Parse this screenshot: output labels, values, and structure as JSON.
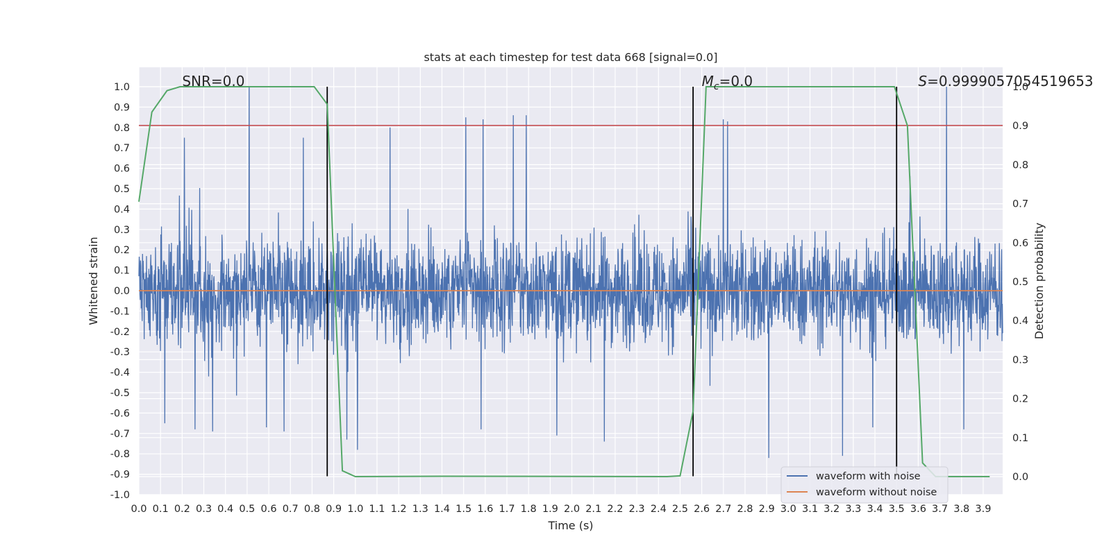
{
  "chart_data": {
    "type": "line",
    "title": "stats at each timestep for test data 668 [signal=0.0]",
    "xlabel": "Time (s)",
    "ylabel": "Whitened strain",
    "y2label": "Detection probability",
    "xlim": [
      0.0,
      3.99
    ],
    "ylim": [
      -1.0,
      1.0
    ],
    "y2lim": [
      -0.0466,
      1.0
    ],
    "x_ticks": [
      "0.0",
      "0.1",
      "0.2",
      "0.3",
      "0.4",
      "0.5",
      "0.6",
      "0.7",
      "0.8",
      "0.9",
      "1.0",
      "1.1",
      "1.2",
      "1.3",
      "1.4",
      "1.5",
      "1.6",
      "1.7",
      "1.8",
      "1.9",
      "2.0",
      "2.1",
      "2.2",
      "2.3",
      "2.4",
      "2.5",
      "2.6",
      "2.7",
      "2.8",
      "2.9",
      "3.0",
      "3.1",
      "3.2",
      "3.3",
      "3.4",
      "3.5",
      "3.6",
      "3.7",
      "3.8",
      "3.9"
    ],
    "y_ticks": [
      "1.0",
      "0.9",
      "0.8",
      "0.7",
      "0.6",
      "0.5",
      "0.4",
      "0.3",
      "0.2",
      "0.1",
      "0.0",
      "-0.1",
      "-0.2",
      "-0.3",
      "-0.4",
      "-0.5",
      "-0.6",
      "-0.7",
      "-0.8",
      "-0.9",
      "-1.0"
    ],
    "y2_ticks": [
      "1.0",
      "0.9",
      "0.8",
      "0.7",
      "0.6",
      "0.5",
      "0.4",
      "0.3",
      "0.2",
      "0.1",
      "0.0"
    ],
    "series": [
      {
        "name": "waveform with noise",
        "color": "#4c72b0",
        "description": "dense noise trace, roughly uniform amplitude ±0.4 with spikes up to ±1.0",
        "noise_amplitude": 0.4,
        "noise_seed": 668,
        "spikes": [
          {
            "x": 0.51,
            "y": 1.0
          },
          {
            "x": 3.73,
            "y": 1.0
          },
          {
            "x": 1.73,
            "y": 0.86
          },
          {
            "x": 1.79,
            "y": 0.86
          },
          {
            "x": 1.51,
            "y": 0.85
          },
          {
            "x": 2.7,
            "y": 0.84
          },
          {
            "x": 2.72,
            "y": 0.83
          },
          {
            "x": 1.59,
            "y": 0.84
          },
          {
            "x": 1.16,
            "y": 0.8
          },
          {
            "x": 0.21,
            "y": 0.75
          },
          {
            "x": 0.76,
            "y": 0.75
          },
          {
            "x": 1.01,
            "y": -0.78
          },
          {
            "x": 2.91,
            "y": -0.82
          },
          {
            "x": 3.25,
            "y": -0.81
          },
          {
            "x": 2.15,
            "y": -0.74
          },
          {
            "x": 1.93,
            "y": -0.71
          },
          {
            "x": 0.96,
            "y": -0.73
          },
          {
            "x": 0.34,
            "y": -0.69
          },
          {
            "x": 0.67,
            "y": -0.69
          },
          {
            "x": 0.26,
            "y": -0.68
          },
          {
            "x": 0.12,
            "y": -0.65
          },
          {
            "x": 3.39,
            "y": -0.67
          },
          {
            "x": 3.81,
            "y": -0.68
          },
          {
            "x": 1.58,
            "y": -0.68
          },
          {
            "x": 0.59,
            "y": -0.67
          }
        ]
      },
      {
        "name": "waveform without noise",
        "color": "#dd8452",
        "x": [
          0.0,
          3.99
        ],
        "y": [
          0.0,
          0.0
        ]
      },
      {
        "name": "detection probability",
        "color": "#55a868",
        "axis": "right",
        "x": [
          0.0,
          0.06,
          0.13,
          0.19,
          0.81,
          0.87,
          0.94,
          1.0,
          1.4,
          2.44,
          2.5,
          2.56,
          2.62,
          3.49,
          3.55,
          3.62,
          3.68,
          3.93
        ],
        "y": [
          0.705,
          0.935,
          0.99,
          1.0,
          1.0,
          0.955,
          0.015,
          0.0,
          0.001,
          0.0,
          0.002,
          0.168,
          1.0,
          1.0,
          0.9,
          0.035,
          0.0,
          0.0
        ]
      }
    ],
    "horizontal_lines": [
      {
        "y": 0.81,
        "color": "#c44e52"
      }
    ],
    "vertical_lines": [
      {
        "x": 0.87,
        "y_from": 1.0,
        "y_to": -0.91,
        "color": "#000000"
      },
      {
        "x": 2.56,
        "y_from": 1.0,
        "y_to": -0.91,
        "color": "#000000"
      },
      {
        "x": 3.5,
        "y_from": 1.0,
        "y_to": -0.91,
        "color": "#000000"
      }
    ],
    "annotations": [
      {
        "label": "SNR=0.0",
        "x": 0.2,
        "y": 1.03
      },
      {
        "label_main": "M",
        "label_sub": "c",
        "label_rest": "=0.0",
        "x": 2.6,
        "y": 1.03
      },
      {
        "label_main": "S",
        "label_rest": "=0.9999057054519653",
        "x": 3.6,
        "y": 1.03
      }
    ],
    "legend": {
      "placement": "lower-right",
      "entries": [
        "waveform with noise",
        "waveform without noise"
      ]
    },
    "grid": true
  }
}
